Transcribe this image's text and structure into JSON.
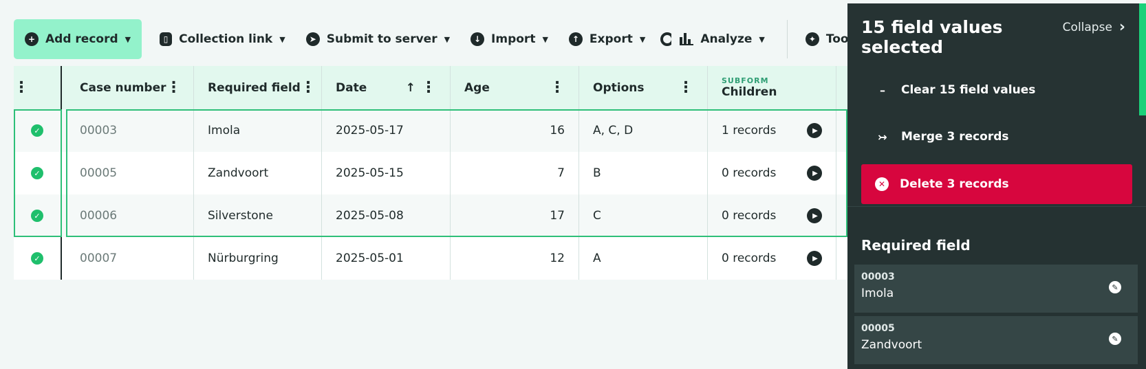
{
  "toolbar": {
    "add_record": "Add record",
    "collection_link": "Collection link",
    "submit_to_server": "Submit to server",
    "import": "Import",
    "export": "Export",
    "analyze": "Analyze",
    "tools": "Tools"
  },
  "table": {
    "columns": [
      "Case number",
      "Required field",
      "Date",
      "Age",
      "Options"
    ],
    "subform_tag": "SUBFORM",
    "subform_label": "Children",
    "rows": [
      {
        "case": "00003",
        "required": "Imola",
        "date": "2025-05-17",
        "age": "16",
        "options": "A, C, D",
        "children": "1 records"
      },
      {
        "case": "00005",
        "required": "Zandvoort",
        "date": "2025-05-15",
        "age": "7",
        "options": "B",
        "children": "0 records"
      },
      {
        "case": "00006",
        "required": "Silverstone",
        "date": "2025-05-08",
        "age": "17",
        "options": "C",
        "children": "0 records"
      },
      {
        "case": "00007",
        "required": "Nürburgring",
        "date": "2025-05-01",
        "age": "12",
        "options": "A",
        "children": "0 records"
      }
    ]
  },
  "panel": {
    "title": "15 field values selected",
    "collapse": "Collapse",
    "clear": "Clear 15 field values",
    "merge": "Merge 3 records",
    "delete": "Delete 3 records",
    "section_title": "Required field",
    "fields": [
      {
        "id": "00003",
        "value": "Imola"
      },
      {
        "id": "00005",
        "value": "Zandvoort"
      }
    ]
  },
  "colors": {
    "accent": "#93f2cb",
    "selection": "#2dbf78",
    "danger": "#d7063e",
    "panel": "#253232"
  }
}
